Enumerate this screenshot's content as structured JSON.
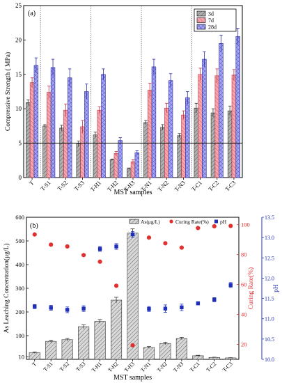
{
  "chart_data": [
    {
      "type": "bar",
      "panel_label": "(a)",
      "xlabel": "MST samples",
      "ylabel": "Compressive Strength ( MPa)",
      "ylim": [
        0,
        25
      ],
      "yticks": [
        0,
        5,
        10,
        15,
        20,
        25
      ],
      "categories": [
        "T",
        "T-S1",
        "T-S2",
        "T-S3",
        "T-H1",
        "T-H2",
        "T-H3",
        "T-N1",
        "T-N2",
        "T-N3",
        "T-C1",
        "T-C2",
        "T-C3"
      ],
      "reference_line": 5,
      "group_separators_after": [
        "T",
        "T-S3",
        "T-H3",
        "T-N3"
      ],
      "legend_position": "top-right",
      "series": [
        {
          "name": "3d",
          "color": "#b0b0b0",
          "hatch": "diagonal",
          "values": [
            10.9,
            7.5,
            7.2,
            4.9,
            6.2,
            2.6,
            1.3,
            8.0,
            7.3,
            6.1,
            10.1,
            9.4,
            9.7
          ],
          "errors": [
            0.4,
            0.2,
            0.4,
            0.4,
            0.4,
            0.1,
            0.1,
            0.3,
            0.4,
            0.3,
            0.7,
            0.6,
            0.7
          ]
        },
        {
          "name": "7d",
          "color": "#f4a6ae",
          "hatch": "diagonal",
          "values": [
            13.8,
            12.4,
            9.8,
            7.4,
            9.8,
            3.5,
            2.3,
            12.7,
            10.1,
            9.1,
            15.0,
            14.8,
            14.9
          ],
          "errors": [
            0.7,
            0.9,
            0.9,
            0.9,
            0.5,
            0.3,
            0.3,
            1.0,
            0.7,
            0.6,
            0.9,
            1.0,
            0.8
          ]
        },
        {
          "name": "28d",
          "color": "#a6a6f2",
          "hatch": "cross",
          "values": [
            16.3,
            16.0,
            14.5,
            12.5,
            15.0,
            5.4,
            3.6,
            16.1,
            14.1,
            11.6,
            17.2,
            19.5,
            20.5
          ],
          "errors": [
            1.1,
            1.2,
            1.3,
            1.1,
            0.8,
            0.4,
            0.3,
            1.1,
            1.0,
            0.9,
            1.1,
            1.2,
            1.2
          ]
        }
      ]
    },
    {
      "type": "bar",
      "panel_label": "(b)",
      "xlabel": "MST samples",
      "ylabel": "As Leaching Concentration(μg/L)",
      "ylabel_right_1": "Curing Rate(%)",
      "ylabel_right_2": "pH",
      "ylim": [
        0,
        600
      ],
      "yticks": [
        10,
        100,
        200,
        300,
        400,
        500,
        600
      ],
      "y2lim": [
        10,
        105
      ],
      "y2ticks": [
        20,
        40,
        60,
        80,
        100
      ],
      "y3lim": [
        10.0,
        13.5
      ],
      "y3ticks": [
        "10.0",
        "10.5",
        "11.0",
        "11.5",
        "12.0",
        "12.5",
        "13.0",
        "13.5"
      ],
      "categories": [
        "T",
        "T-S1",
        "T-S2",
        "T-S3",
        "T-H1",
        "T-H2",
        "T-H3",
        "T-N1",
        "T-N2",
        "T-N3",
        "T-C1",
        "T-C2",
        "T-C3"
      ],
      "legend_position": "top-center",
      "legend": [
        "As(μg/L)",
        "Curing Rate(%)",
        "pH"
      ],
      "series": [
        {
          "name": "As(μg/L)",
          "kind": "bar",
          "color": "#c8c8c8",
          "hatch": "diagonal",
          "values": [
            28,
            76,
            83,
            138,
            160,
            250,
            533,
            50,
            67,
            88,
            15,
            8,
            6
          ],
          "errors": [
            3,
            5,
            5,
            8,
            8,
            12,
            18,
            4,
            5,
            5,
            2,
            1,
            1
          ]
        },
        {
          "name": "Curing Rate(%)",
          "kind": "scatter",
          "color": "#e03030",
          "values": [
            93.5,
            86.7,
            85.5,
            79.7,
            75.3,
            59.2,
            19.4,
            91.4,
            87.6,
            84.7,
            97.8,
            99.0,
            99.2
          ]
        },
        {
          "name": "pH",
          "kind": "scatter",
          "color": "#1f2fb8",
          "values": [
            11.3,
            11.27,
            11.22,
            11.25,
            12.72,
            12.78,
            13.08,
            11.24,
            11.25,
            11.28,
            11.38,
            11.47,
            11.83
          ],
          "errors": [
            0.05,
            0.06,
            0.07,
            0.07,
            0.06,
            0.07,
            0.07,
            0.06,
            0.09,
            0.08,
            0.04,
            0.05,
            0.06
          ]
        }
      ]
    }
  ]
}
